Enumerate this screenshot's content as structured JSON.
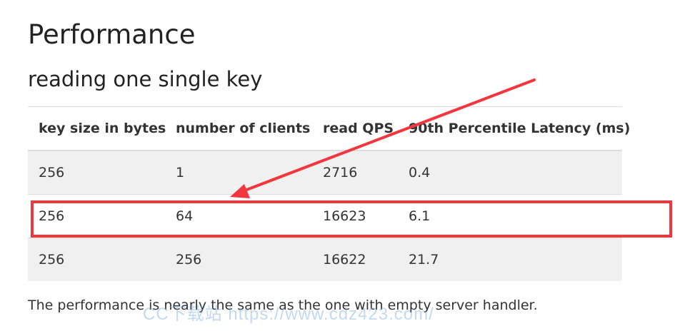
{
  "heading": "Performance",
  "subheading": "reading one single key",
  "table": {
    "headers": [
      "key size in bytes",
      "number of clients",
      "read QPS",
      "90th Percentile Latency (ms)"
    ],
    "rows": [
      [
        "256",
        "1",
        "2716",
        "0.4"
      ],
      [
        "256",
        "64",
        "16623",
        "6.1"
      ],
      [
        "256",
        "256",
        "16622",
        "21.7"
      ]
    ]
  },
  "note": "The performance is nearly the same as the one with empty server handler.",
  "watermark": "CC下载站 https://www.cdz423.com/",
  "annotation": {
    "highlighted_row": 2,
    "color": "#f2363d"
  }
}
